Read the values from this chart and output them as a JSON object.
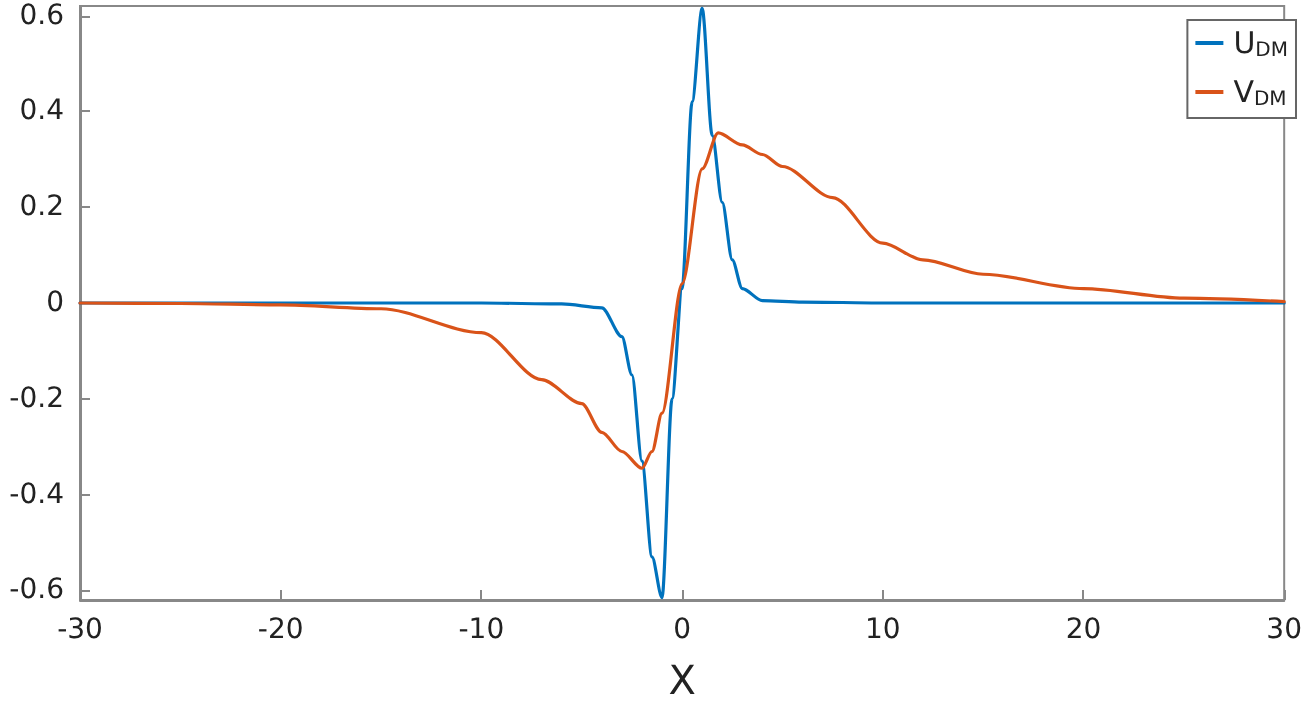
{
  "chart_data": {
    "type": "line",
    "xlabel": "X",
    "xlim": [
      -30,
      30
    ],
    "xticks": [
      -30,
      -20,
      -10,
      0,
      10,
      20,
      30
    ],
    "ylim": [
      -0.62,
      0.62
    ],
    "yticks": [
      -0.6,
      -0.4,
      -0.2,
      0,
      0.2,
      0.4,
      0.6
    ],
    "grid": false,
    "legend": "top right",
    "marker": "none",
    "line_style": "solid",
    "series": [
      {
        "name": "U$_{DM}$",
        "color": "#0072bd",
        "x": [
          -30,
          -20,
          -10,
          -6,
          -4,
          -3,
          -2.5,
          -2,
          -1.5,
          -1,
          -0.5,
          0,
          0.5,
          1,
          1.5,
          2,
          2.5,
          3,
          4,
          6,
          10,
          20,
          30
        ],
        "values": [
          0,
          0,
          0,
          -0.002,
          -0.01,
          -0.07,
          -0.15,
          -0.33,
          -0.53,
          -0.615,
          -0.2,
          0.03,
          0.42,
          0.615,
          0.35,
          0.21,
          0.09,
          0.03,
          0.005,
          0.002,
          0,
          0,
          0
        ]
      },
      {
        "name": "V$_{DM}$",
        "color": "#d95319",
        "x": [
          -30,
          -25,
          -20,
          -15,
          -10,
          -7,
          -5,
          -4,
          -3,
          -2,
          -1.5,
          -1,
          0,
          1,
          1.8,
          3,
          4,
          5,
          7.5,
          10,
          12,
          15,
          20,
          25,
          30
        ],
        "values": [
          0,
          -0.001,
          -0.004,
          -0.012,
          -0.062,
          -0.16,
          -0.21,
          -0.27,
          -0.31,
          -0.345,
          -0.31,
          -0.23,
          0.04,
          0.28,
          0.355,
          0.33,
          0.31,
          0.285,
          0.22,
          0.125,
          0.09,
          0.06,
          0.03,
          0.01,
          0.003
        ]
      }
    ]
  }
}
